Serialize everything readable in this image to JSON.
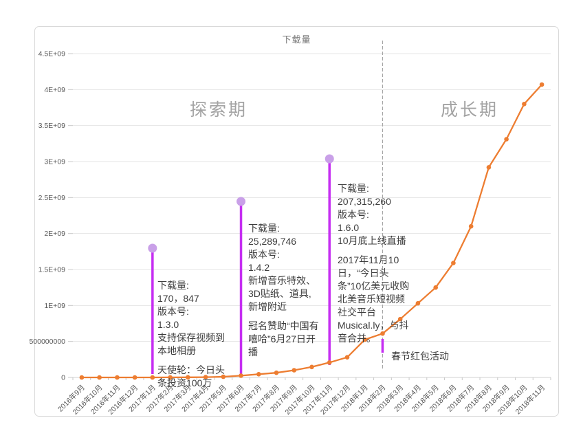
{
  "chart": {
    "title": "下载量",
    "phase_labels": {
      "exploration": "探索期",
      "growth": "成长期"
    },
    "colors": {
      "series_orange": "#ED7D31",
      "event_line_purple": "#C52DF2",
      "event_dot_purple": "#C9A0E8",
      "phase_divider_gray": "#A6A6A6",
      "gridline": "#E4E4E4",
      "axis_line": "#D0D0D0",
      "tick": "#C9C9C9",
      "axis_text": "#595959"
    },
    "chart_data": {
      "type": "line",
      "title": "下载量",
      "x": [
        "2016年9月",
        "2016年10月",
        "2016年11月",
        "2016年12月",
        "2017年1月",
        "2017年2月",
        "2017年3月",
        "2017年4月",
        "2017年5月",
        "2017年6月",
        "2017年7月",
        "2017年8月",
        "2017年9月",
        "2017年10月",
        "2017年11月",
        "2017年12月",
        "2018年1月",
        "2018年2月",
        "2018年3月",
        "2018年4月",
        "2018年5月",
        "2018年6月",
        "2018年7月",
        "2018年8月",
        "2018年9月",
        "2018年10月",
        "2018年11月"
      ],
      "values": [
        20000,
        40000,
        70000,
        110000,
        170847,
        600000,
        1500000,
        4000000,
        10000000,
        25289746,
        45000000,
        65000000,
        100000000,
        145000000,
        207315260,
        280000000,
        525000000,
        610000000,
        810000000,
        1030000000,
        1250000000,
        1590000000,
        2100000000,
        2920000000,
        3310000000,
        3800000000,
        4070000000
      ],
      "ylim": [
        0,
        4500000000
      ],
      "ytick_labels": [
        "0",
        "500000000",
        "1E+09",
        "1.5E+09",
        "2E+09",
        "2.5E+09",
        "3E+09",
        "3.5E+09",
        "4E+09",
        "4.5E+09"
      ],
      "grid": true,
      "legend": "none",
      "phase_divider_at": "2018年2月",
      "event_months": [
        "2017年1月",
        "2017年6月",
        "2017年11月",
        "2018年2月"
      ]
    },
    "annotations": [
      {
        "x_label": "2017年1月",
        "para1": "下载量:\n170，847\n版本号:\n1.3.0\n支持保存视频到\n本地相册",
        "para2": "天使轮：今日头\n条投资100万"
      },
      {
        "x_label": "2017年6月",
        "para1": "下载量:\n25,289,746\n版本号:\n1.4.2\n新增音乐特效、\n3D贴纸、道具,\n新增附近",
        "para2": "冠名赞助“中国有\n嘻哈”6月27日开\n播"
      },
      {
        "x_label": "2017年11月",
        "para1": "下载量:\n207,315,260\n版本号:\n1.6.0\n10月底上线直播",
        "para2": "2017年11月10\n日，“今日头\n条”10亿美元收购\n北美音乐短视频\n社交平台\nMusical.ly，与抖\n音合并。"
      },
      {
        "x_label": "2018年2月",
        "para1": "春节红包活动",
        "para2": ""
      }
    ]
  }
}
